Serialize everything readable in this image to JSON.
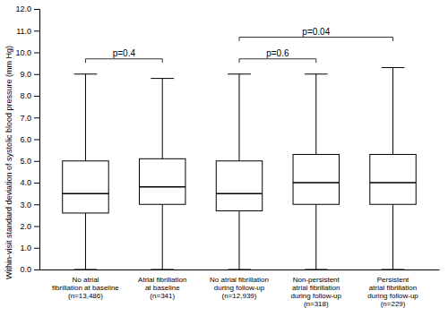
{
  "chart_data": {
    "type": "box",
    "ylabel": "Within-visit standard deviation of systolic blood pressure (mm Hg)",
    "categories": [
      "No atrial\nfibrillation at baseline\n(n=13,486)",
      "Atrial fibrillation\nat baseline\n(n=341)",
      "No atrial fibrillation\nduring follow-up\n(n=12,939)",
      "Non-persistent\natrial fibrillation\nduring follow-up\n(n=318)",
      "Persistent\natrial fibrillation\nduring follow-up\n(n=229)"
    ],
    "median": [
      3.5,
      3.8,
      3.5,
      4.0,
      4.0
    ],
    "q1": [
      2.6,
      3.0,
      2.7,
      3.0,
      3.0
    ],
    "q3": [
      5.0,
      5.1,
      5.0,
      5.3,
      5.3
    ],
    "whislo": [
      0.0,
      0.0,
      0.0,
      0.0,
      0.0
    ],
    "whishi": [
      9.0,
      8.8,
      9.0,
      9.0,
      9.3
    ],
    "color": "#000000",
    "ylim": [
      0.0,
      12.0
    ],
    "yticks": [
      {
        "value": 0.0,
        "label": "0.0"
      },
      {
        "value": 1.0,
        "label": "1.0"
      },
      {
        "value": 2.0,
        "label": "2.0"
      },
      {
        "value": 3.0,
        "label": "3.0"
      },
      {
        "value": 4.0,
        "label": "4.0"
      },
      {
        "value": 5.0,
        "label": "5.0"
      },
      {
        "value": 6.0,
        "label": "6.0"
      },
      {
        "value": 7.0,
        "label": "7.0"
      },
      {
        "value": 8.0,
        "label": "8.0"
      },
      {
        "value": 9.0,
        "label": "9.0"
      },
      {
        "value": 10.0,
        "label": "10.0"
      },
      {
        "value": 11.0,
        "label": "11.0"
      },
      {
        "value": 12.0,
        "label": "12.0"
      }
    ],
    "grid": false,
    "annotations": [
      {
        "text": "p=0.4",
        "from": 0,
        "to": 1,
        "y": 9.7
      },
      {
        "text": "p=0.6",
        "from": 2,
        "to": 3,
        "y": 9.7
      },
      {
        "text": "p=0.04",
        "from": 2,
        "to": 4,
        "y": 10.7
      }
    ]
  }
}
